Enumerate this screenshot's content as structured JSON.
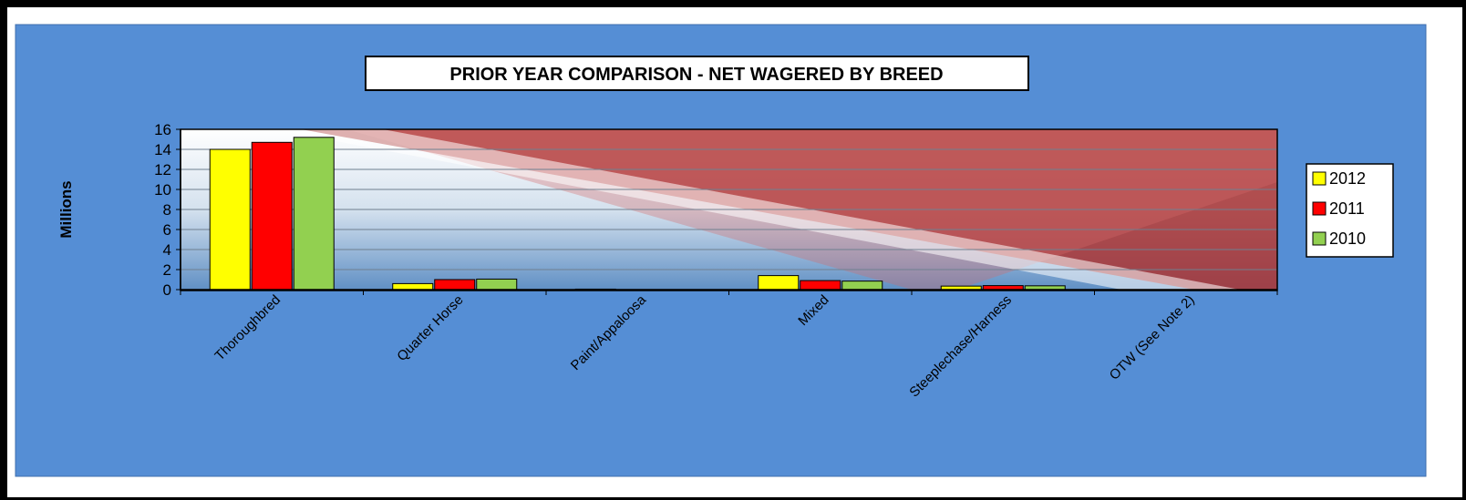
{
  "chart_data": {
    "type": "bar",
    "title": "PRIOR YEAR COMPARISON - NET WAGERED BY BREED",
    "xlabel": "",
    "ylabel": "Millions",
    "ylim": [
      0,
      16
    ],
    "yticks": [
      0,
      2,
      4,
      6,
      8,
      10,
      12,
      14,
      16
    ],
    "grid": true,
    "legend_position": "right",
    "categories": [
      "Thoroughbred",
      "Quarter Horse",
      "Paint/Appaloosa",
      "Mixed",
      "Steeplechase/Harness",
      "OTW (See Note 2)"
    ],
    "series": [
      {
        "name": "2012",
        "color": "#ffff00",
        "values": [
          14.0,
          0.6,
          0.05,
          1.4,
          0.35,
          0.0
        ]
      },
      {
        "name": "2011",
        "color": "#ff0000",
        "values": [
          14.7,
          1.0,
          0.0,
          0.9,
          0.4,
          0.0
        ]
      },
      {
        "name": "2010",
        "color": "#92d050",
        "values": [
          15.2,
          1.05,
          0.0,
          0.85,
          0.38,
          0.0
        ]
      }
    ]
  },
  "colors": {
    "outer_background": "#558ed5",
    "border": "#000000"
  }
}
